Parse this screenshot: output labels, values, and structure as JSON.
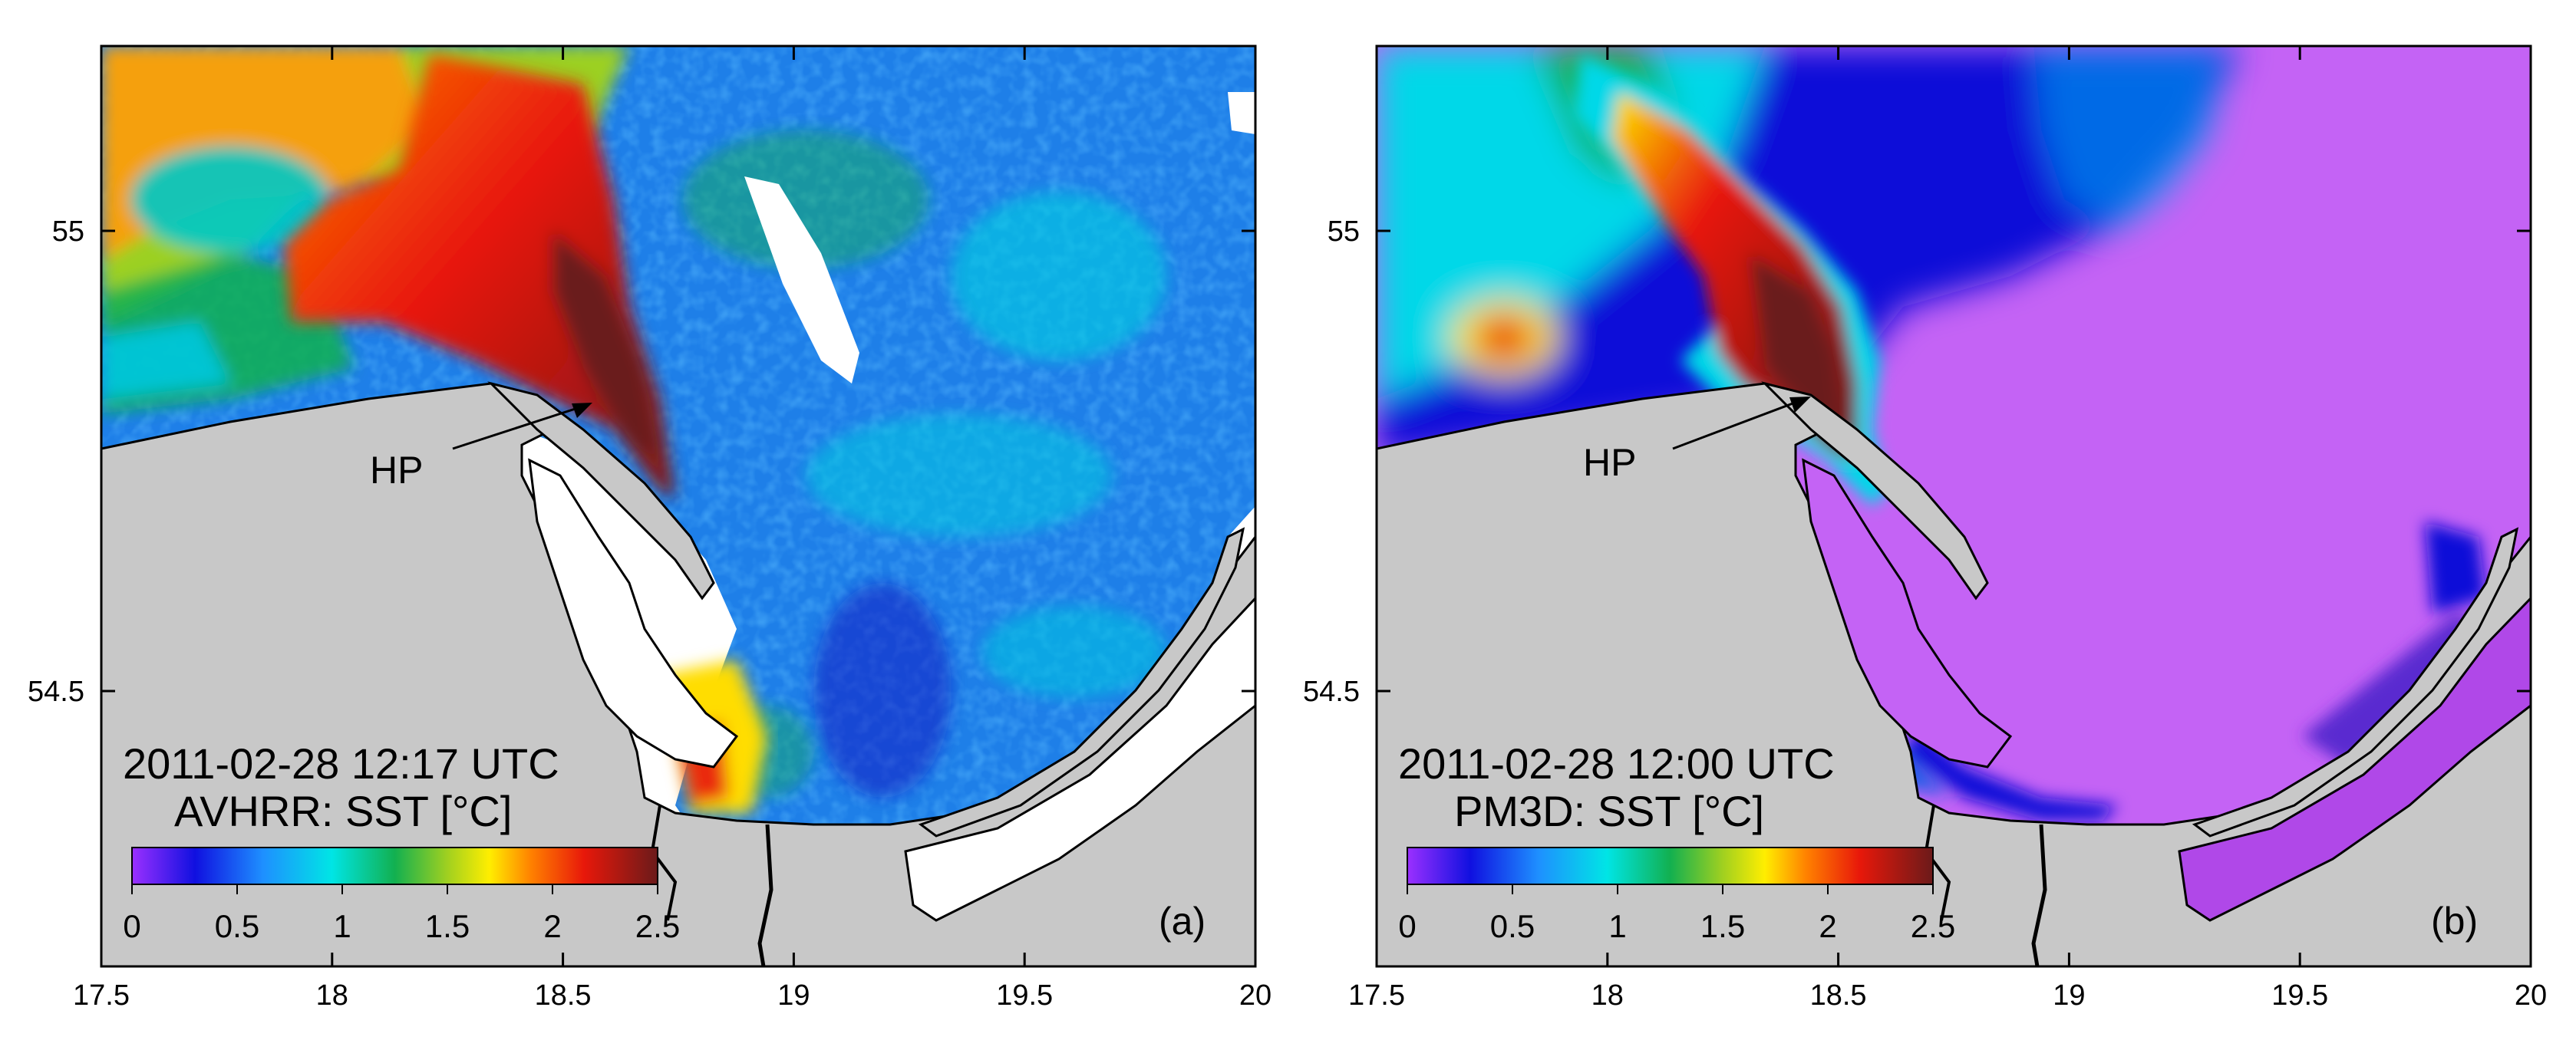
{
  "panels": [
    {
      "id": "a",
      "timestamp": "2011-02-28 12:17 UTC",
      "source_label": "AVHRR: SST [°C]",
      "panel_label": "(a)",
      "annotation": "HP",
      "x_ticks": [
        "17.5",
        "18",
        "18.5",
        "19",
        "19.5",
        "20"
      ],
      "y_ticks": [
        "55",
        "54.5"
      ],
      "colorbar_ticks": [
        "0",
        "0.5",
        "1",
        "1.5",
        "2",
        "2.5"
      ]
    },
    {
      "id": "b",
      "timestamp": "2011-02-28 12:00 UTC",
      "source_label": "PM3D: SST [°C]",
      "panel_label": "(b)",
      "annotation": "HP",
      "x_ticks": [
        "17.5",
        "18",
        "18.5",
        "19",
        "19.5",
        "20"
      ],
      "y_ticks": [
        "55",
        "54.5"
      ],
      "colorbar_ticks": [
        "0",
        "0.5",
        "1",
        "1.5",
        "2",
        "2.5"
      ]
    }
  ],
  "colors": {
    "land": "#c8c8c8",
    "no_data": "#ffffff",
    "colormap": [
      "#9b30ff",
      "#1010e0",
      "#1e90ff",
      "#00e5e5",
      "#12b050",
      "#a0d020",
      "#ffee00",
      "#ff8000",
      "#e8180a",
      "#6b1a1a"
    ]
  }
}
